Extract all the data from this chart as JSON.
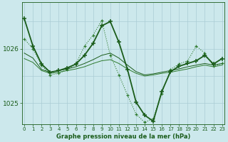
{
  "background_color": "#cce8ec",
  "grid_color": "#aaccd4",
  "line_color_dark": "#1a5c1a",
  "line_color_mid": "#2d7a2d",
  "xlabel": "Graphe pression niveau de la mer (hPa)",
  "ylabel_ticks": [
    1025,
    1026
  ],
  "x_ticks": [
    0,
    1,
    2,
    3,
    4,
    5,
    6,
    7,
    8,
    9,
    10,
    11,
    12,
    13,
    14,
    15,
    16,
    17,
    18,
    19,
    20,
    21,
    22,
    23
  ],
  "xlim": [
    -0.3,
    23.3
  ],
  "ylim": [
    1024.62,
    1026.85
  ],
  "series_bold": [
    1026.55,
    1026.05,
    1025.72,
    1025.57,
    1025.6,
    1025.65,
    1025.72,
    1025.88,
    1026.1,
    1026.42,
    1026.5,
    1026.12,
    1025.62,
    1025.02,
    1024.78,
    1024.67,
    1025.22,
    1025.58,
    1025.68,
    1025.73,
    1025.78,
    1025.88,
    1025.72,
    1025.82
  ],
  "series_thin1": [
    1025.92,
    1025.83,
    1025.62,
    1025.57,
    1025.6,
    1025.63,
    1025.67,
    1025.73,
    1025.8,
    1025.88,
    1025.92,
    1025.83,
    1025.7,
    1025.58,
    1025.52,
    1025.54,
    1025.57,
    1025.6,
    1025.63,
    1025.67,
    1025.7,
    1025.73,
    1025.7,
    1025.73
  ],
  "series_thin2": [
    1025.82,
    1025.75,
    1025.6,
    1025.55,
    1025.57,
    1025.6,
    1025.63,
    1025.67,
    1025.73,
    1025.78,
    1025.8,
    1025.73,
    1025.63,
    1025.55,
    1025.5,
    1025.52,
    1025.55,
    1025.57,
    1025.6,
    1025.63,
    1025.67,
    1025.7,
    1025.67,
    1025.7
  ],
  "series_dotted": [
    1026.18,
    1026.0,
    1025.7,
    1025.52,
    1025.55,
    1025.62,
    1025.72,
    1026.05,
    1026.25,
    1026.52,
    1025.88,
    1025.52,
    1025.15,
    1024.8,
    1024.65,
    1024.72,
    1025.18,
    1025.62,
    1025.72,
    1025.78,
    1026.05,
    1025.92,
    1025.68,
    1025.73
  ]
}
